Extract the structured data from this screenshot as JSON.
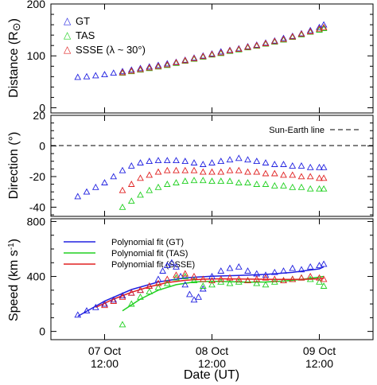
{
  "chart_data": [
    {
      "type": "scatter",
      "panel": "distance",
      "ylabel": "Distance (R⊙)",
      "ylim": [
        -10,
        200
      ],
      "yticks": [
        0,
        100,
        200
      ],
      "xlim_days": [
        0,
        3
      ],
      "legend": "top-left",
      "series": [
        {
          "name": "GT",
          "marker": "triangle",
          "color": "#2020e0",
          "x": [
            "07 Oct 06:00",
            "07 Oct 08:00",
            "07 Oct 10:00",
            "07 Oct 12:00",
            "07 Oct 14:00",
            "07 Oct 16:00",
            "07 Oct 18:00",
            "07 Oct 20:00",
            "07 Oct 22:00",
            "08 Oct 00:00",
            "08 Oct 02:00",
            "08 Oct 04:00",
            "08 Oct 06:00",
            "08 Oct 08:00",
            "08 Oct 10:00",
            "08 Oct 12:00",
            "08 Oct 14:00",
            "08 Oct 16:00",
            "08 Oct 18:00",
            "08 Oct 20:00",
            "08 Oct 22:00",
            "09 Oct 00:00",
            "09 Oct 02:00",
            "09 Oct 04:00",
            "09 Oct 06:00",
            "09 Oct 08:00",
            "09 Oct 10:00",
            "09 Oct 12:00",
            "09 Oct 13:00"
          ],
          "y": [
            59,
            60,
            62,
            64,
            67,
            70,
            73,
            76,
            79,
            82,
            85,
            88,
            92,
            96,
            100,
            104,
            108,
            111,
            114,
            118,
            121,
            125,
            129,
            134,
            138,
            143,
            149,
            155,
            160
          ]
        },
        {
          "name": "TAS",
          "marker": "triangle",
          "color": "#20d020",
          "x": [
            "07 Oct 16:00",
            "07 Oct 18:00",
            "07 Oct 20:00",
            "07 Oct 22:00",
            "08 Oct 00:00",
            "08 Oct 02:00",
            "08 Oct 04:00",
            "08 Oct 06:00",
            "08 Oct 08:00",
            "08 Oct 10:00",
            "08 Oct 12:00",
            "08 Oct 14:00",
            "08 Oct 16:00",
            "08 Oct 18:00",
            "08 Oct 20:00",
            "08 Oct 22:00",
            "09 Oct 00:00",
            "09 Oct 02:00",
            "09 Oct 04:00",
            "09 Oct 06:00",
            "09 Oct 08:00",
            "09 Oct 10:00",
            "09 Oct 12:00",
            "09 Oct 13:00"
          ],
          "y": [
            67,
            70,
            73,
            76,
            79,
            82,
            86,
            90,
            94,
            98,
            102,
            105,
            109,
            112,
            116,
            119,
            123,
            127,
            131,
            136,
            141,
            146,
            150,
            153
          ]
        },
        {
          "name": "SSSE (λ ~ 30°)",
          "marker": "triangle",
          "color": "#e02020",
          "x": [
            "07 Oct 16:00",
            "07 Oct 18:00",
            "07 Oct 20:00",
            "07 Oct 22:00",
            "08 Oct 00:00",
            "08 Oct 02:00",
            "08 Oct 04:00",
            "08 Oct 06:00",
            "08 Oct 08:00",
            "08 Oct 10:00",
            "08 Oct 12:00",
            "08 Oct 14:00",
            "08 Oct 16:00",
            "08 Oct 18:00",
            "08 Oct 20:00",
            "08 Oct 22:00",
            "09 Oct 00:00",
            "09 Oct 02:00",
            "09 Oct 04:00",
            "09 Oct 06:00",
            "09 Oct 08:00",
            "09 Oct 10:00",
            "09 Oct 12:00",
            "09 Oct 13:00"
          ],
          "y": [
            68,
            71,
            74,
            77,
            80,
            83,
            87,
            91,
            95,
            99,
            103,
            106,
            110,
            113,
            117,
            120,
            124,
            128,
            132,
            137,
            142,
            147,
            152,
            155
          ]
        }
      ]
    },
    {
      "type": "scatter",
      "panel": "direction",
      "ylabel": "Direction (°)",
      "ylim": [
        -46,
        20
      ],
      "yticks": [
        -40,
        -20,
        0,
        20
      ],
      "reference_line": {
        "label": "Sun-Earth line",
        "y": 0
      },
      "series": [
        {
          "name": "GT",
          "color": "#2020e0",
          "x": [
            "07 Oct 06:00",
            "07 Oct 08:00",
            "07 Oct 10:00",
            "07 Oct 12:00",
            "07 Oct 14:00",
            "07 Oct 16:00",
            "07 Oct 18:00",
            "07 Oct 20:00",
            "07 Oct 22:00",
            "08 Oct 00:00",
            "08 Oct 02:00",
            "08 Oct 04:00",
            "08 Oct 06:00",
            "08 Oct 08:00",
            "08 Oct 10:00",
            "08 Oct 12:00",
            "08 Oct 14:00",
            "08 Oct 16:00",
            "08 Oct 18:00",
            "08 Oct 20:00",
            "08 Oct 22:00",
            "09 Oct 00:00",
            "09 Oct 02:00",
            "09 Oct 04:00",
            "09 Oct 06:00",
            "09 Oct 08:00",
            "09 Oct 10:00",
            "09 Oct 12:00",
            "09 Oct 13:00"
          ],
          "y": [
            -33,
            -30,
            -27,
            -24,
            -20,
            -16,
            -13,
            -11,
            -10,
            -9.5,
            -9.5,
            -9.5,
            -10,
            -11,
            -12,
            -11,
            -10,
            -9,
            -8,
            -9,
            -10,
            -11,
            -12,
            -12,
            -13,
            -13,
            -14,
            -14,
            -14
          ]
        },
        {
          "name": "TAS",
          "color": "#20d020",
          "x": [
            "07 Oct 16:00",
            "07 Oct 18:00",
            "07 Oct 20:00",
            "07 Oct 22:00",
            "08 Oct 00:00",
            "08 Oct 02:00",
            "08 Oct 04:00",
            "08 Oct 06:00",
            "08 Oct 08:00",
            "08 Oct 10:00",
            "08 Oct 12:00",
            "08 Oct 14:00",
            "08 Oct 16:00",
            "08 Oct 18:00",
            "08 Oct 20:00",
            "08 Oct 22:00",
            "09 Oct 00:00",
            "09 Oct 02:00",
            "09 Oct 04:00",
            "09 Oct 06:00",
            "09 Oct 08:00",
            "09 Oct 10:00",
            "09 Oct 12:00",
            "09 Oct 13:00"
          ],
          "y": [
            -40,
            -36,
            -32,
            -29,
            -27,
            -25,
            -24,
            -23,
            -22.5,
            -22.5,
            -23,
            -23,
            -23,
            -24,
            -24,
            -25,
            -25,
            -26,
            -26,
            -27,
            -27,
            -28,
            -28,
            -28
          ]
        },
        {
          "name": "SSSE (λ ~ 30°)",
          "color": "#e02020",
          "x": [
            "07 Oct 16:00",
            "07 Oct 18:00",
            "07 Oct 20:00",
            "07 Oct 22:00",
            "08 Oct 00:00",
            "08 Oct 02:00",
            "08 Oct 04:00",
            "08 Oct 06:00",
            "08 Oct 08:00",
            "08 Oct 10:00",
            "08 Oct 12:00",
            "08 Oct 14:00",
            "08 Oct 16:00",
            "08 Oct 18:00",
            "08 Oct 20:00",
            "08 Oct 22:00",
            "09 Oct 00:00",
            "09 Oct 02:00",
            "09 Oct 04:00",
            "09 Oct 06:00",
            "09 Oct 08:00",
            "09 Oct 10:00",
            "09 Oct 12:00",
            "09 Oct 13:00"
          ],
          "y": [
            -29,
            -25,
            -21,
            -19,
            -17,
            -16,
            -16,
            -16,
            -16,
            -17,
            -17,
            -17,
            -16,
            -16,
            -17,
            -17,
            -18,
            -18,
            -19,
            -19,
            -20,
            -20,
            -21,
            -21
          ]
        }
      ]
    },
    {
      "type": "scatter",
      "panel": "speed",
      "ylabel": "Speed (km s⁻¹)",
      "ylim": [
        -60,
        820
      ],
      "yticks": [
        0,
        400,
        800
      ],
      "xlabel": "Date (UT)",
      "xtick_labels": [
        [
          "07 Oct",
          "12:00"
        ],
        [
          "08 Oct",
          "12:00"
        ],
        [
          "09 Oct",
          "12:00"
        ]
      ],
      "legend": "top-left",
      "fits": [
        {
          "name": "Polynomial fit (GT)",
          "color": "#2020e0",
          "x": [
            "07 Oct 06:00",
            "07 Oct 12:00",
            "07 Oct 18:00",
            "08 Oct 00:00",
            "08 Oct 06:00",
            "08 Oct 12:00",
            "08 Oct 18:00",
            "09 Oct 00:00",
            "09 Oct 06:00",
            "09 Oct 12:00",
            "09 Oct 13:00"
          ],
          "y": [
            110,
            220,
            305,
            360,
            390,
            402,
            408,
            415,
            430,
            455,
            470
          ]
        },
        {
          "name": "Polynomial fit (TAS)",
          "color": "#20d020",
          "x": [
            "07 Oct 16:00",
            "07 Oct 20:00",
            "08 Oct 00:00",
            "08 Oct 04:00",
            "08 Oct 08:00",
            "08 Oct 12:00",
            "08 Oct 16:00",
            "08 Oct 20:00",
            "09 Oct 00:00",
            "09 Oct 04:00",
            "09 Oct 08:00",
            "09 Oct 12:00",
            "09 Oct 13:00"
          ],
          "y": [
            150,
            235,
            300,
            340,
            360,
            365,
            362,
            358,
            360,
            366,
            378,
            395,
            400
          ]
        },
        {
          "name": "Polynomial fit (SSSE)",
          "color": "#e02020",
          "x": [
            "07 Oct 10:00",
            "07 Oct 14:00",
            "07 Oct 18:00",
            "07 Oct 22:00",
            "08 Oct 02:00",
            "08 Oct 06:00",
            "08 Oct 10:00",
            "08 Oct 14:00",
            "08 Oct 18:00",
            "08 Oct 22:00",
            "09 Oct 02:00",
            "09 Oct 06:00",
            "09 Oct 10:00",
            "09 Oct 13:00"
          ],
          "y": [
            175,
            235,
            285,
            325,
            355,
            372,
            380,
            383,
            382,
            380,
            378,
            378,
            380,
            385
          ]
        }
      ],
      "series": [
        {
          "name": "GT",
          "color": "#2020e0",
          "x": [
            "07 Oct 06:00",
            "07 Oct 08:00",
            "07 Oct 10:00",
            "07 Oct 12:00",
            "07 Oct 14:00",
            "07 Oct 16:00",
            "07 Oct 18:00",
            "07 Oct 20:00",
            "07 Oct 22:00",
            "08 Oct 00:00",
            "08 Oct 01:00",
            "08 Oct 02:00",
            "08 Oct 03:00",
            "08 Oct 04:00",
            "08 Oct 05:00",
            "08 Oct 06:00",
            "08 Oct 07:00",
            "08 Oct 08:00",
            "08 Oct 09:00",
            "08 Oct 10:00",
            "08 Oct 12:00",
            "08 Oct 14:00",
            "08 Oct 16:00",
            "08 Oct 18:00",
            "08 Oct 20:00",
            "08 Oct 22:00",
            "09 Oct 00:00",
            "09 Oct 02:00",
            "09 Oct 04:00",
            "09 Oct 06:00",
            "09 Oct 08:00",
            "09 Oct 10:00",
            "09 Oct 12:00",
            "09 Oct 13:00"
          ],
          "y": [
            120,
            150,
            175,
            200,
            230,
            260,
            280,
            300,
            330,
            380,
            440,
            480,
            500,
            470,
            400,
            340,
            270,
            230,
            250,
            310,
            400,
            440,
            460,
            470,
            440,
            420,
            410,
            430,
            440,
            460,
            450,
            470,
            480,
            490
          ]
        },
        {
          "name": "TAS",
          "color": "#20d020",
          "x": [
            "07 Oct 16:00",
            "07 Oct 18:00",
            "07 Oct 20:00",
            "07 Oct 22:00",
            "08 Oct 00:00",
            "08 Oct 02:00",
            "08 Oct 04:00",
            "08 Oct 06:00",
            "08 Oct 08:00",
            "08 Oct 10:00",
            "08 Oct 12:00",
            "08 Oct 14:00",
            "08 Oct 16:00",
            "08 Oct 18:00",
            "08 Oct 20:00",
            "08 Oct 22:00",
            "09 Oct 00:00",
            "09 Oct 02:00",
            "09 Oct 04:00",
            "09 Oct 06:00",
            "09 Oct 08:00",
            "09 Oct 10:00",
            "09 Oct 12:00",
            "09 Oct 13:00"
          ],
          "y": [
            50,
            200,
            250,
            290,
            320,
            350,
            390,
            400,
            370,
            330,
            340,
            360,
            350,
            360,
            370,
            350,
            340,
            360,
            370,
            380,
            390,
            380,
            360,
            330
          ]
        },
        {
          "name": "SSSE (λ ~ 30°)",
          "color": "#e02020",
          "x": [
            "07 Oct 12:00",
            "07 Oct 14:00",
            "07 Oct 16:00",
            "07 Oct 18:00",
            "07 Oct 20:00",
            "07 Oct 22:00",
            "08 Oct 00:00",
            "08 Oct 02:00",
            "08 Oct 04:00",
            "08 Oct 06:00",
            "08 Oct 08:00",
            "08 Oct 10:00",
            "08 Oct 12:00",
            "08 Oct 14:00",
            "08 Oct 16:00",
            "08 Oct 18:00",
            "08 Oct 20:00",
            "08 Oct 22:00",
            "09 Oct 00:00",
            "09 Oct 02:00",
            "09 Oct 04:00",
            "09 Oct 06:00",
            "09 Oct 08:00",
            "09 Oct 10:00",
            "09 Oct 12:00",
            "09 Oct 13:00"
          ],
          "y": [
            190,
            220,
            250,
            280,
            300,
            330,
            350,
            380,
            410,
            420,
            400,
            380,
            370,
            380,
            390,
            380,
            370,
            380,
            390,
            380,
            370,
            380,
            390,
            400,
            390,
            380
          ]
        }
      ]
    }
  ],
  "labels": {
    "distance_ylabel": "Distance (R",
    "distance_ylabel_sym": "⊙",
    "distance_ylabel_close": ")",
    "direction_ylabel": "Direction (°)",
    "speed_ylabel": "Speed (km s",
    "speed_ylabel_sup": "-1",
    "speed_ylabel_close": ")",
    "xlabel": "Date (UT)",
    "sun_earth": "Sun-Earth line",
    "legend_gt": "GT",
    "legend_tas": "TAS",
    "legend_ssse": "SSSE (λ ~ 30°)",
    "fit_gt": "Polynomial fit (GT)",
    "fit_tas": "Polynomial fit (TAS)",
    "fit_ssse": "Polynomial fit (SSSE)",
    "x_day": [
      "07 Oct",
      "08 Oct",
      "09 Oct"
    ],
    "x_time": [
      "12:00",
      "12:00",
      "12:00"
    ]
  }
}
